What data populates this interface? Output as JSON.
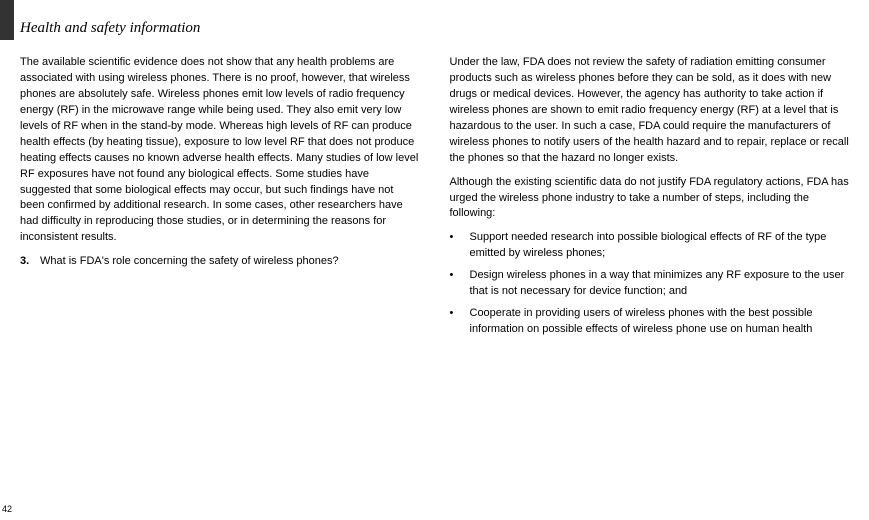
{
  "header": {
    "title": "Health and safety information"
  },
  "leftColumn": {
    "para1": "The available scientific evidence does not show that any health problems are associated with using wireless phones. There is no proof, however, that wireless phones are absolutely safe. Wireless phones emit low levels of radio frequency energy (RF) in the microwave range while being used. They also emit very low levels of RF when in the stand-by mode. Whereas high levels of RF can produce health effects (by heating tissue), exposure to low level RF that does not produce heating effects causes no known adverse health effects. Many studies of low level RF exposures have not found any biological effects. Some studies have suggested that some biological effects may occur, but such findings have not been confirmed by additional research. In some cases, other researchers have had difficulty in reproducing those studies, or in determining the reasons for inconsistent results.",
    "q3_num": "3.",
    "q3_text": "What is FDA's role concerning the safety of wireless phones?"
  },
  "rightColumn": {
    "para1": "Under the law, FDA does not review the safety of radiation emitting consumer products such as wireless phones before they can be sold, as it does with new drugs or medical devices. However, the agency has authority to take action if wireless phones are shown to emit radio frequency energy (RF) at a level that is hazardous to the user. In such a case, FDA could require the manufacturers of wireless phones to notify users of the health hazard and to repair, replace or recall the phones so that the hazard no longer exists.",
    "para2": "Although the existing scientific data do not justify FDA regulatory actions, FDA has urged the wireless phone industry to take a number of steps, including the following:",
    "bullets": {
      "b1": "Support needed research into possible biological effects of RF of the type emitted by wireless phones;",
      "b2": "Design wireless phones in a way that minimizes any RF exposure to the user that is not necessary for device function; and",
      "b3": "Cooperate in providing users of wireless phones with the best possible information on possible effects of wireless phone use on human health"
    }
  },
  "pageNumber": "42",
  "bulletChar": "•"
}
